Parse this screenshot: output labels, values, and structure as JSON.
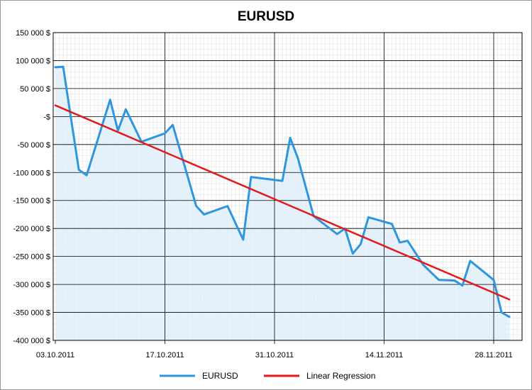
{
  "chart_data": {
    "type": "line",
    "title": "EURUSD",
    "xlabel": "",
    "ylabel": "",
    "x_ticks": [
      "03.10.2011",
      "17.10.2011",
      "31.10.2011",
      "14.11.2011",
      "28.11.2011"
    ],
    "x_range": [
      "2011-10-03",
      "2011-12-01"
    ],
    "y_ticks": [
      "150 000 $",
      "100 000 $",
      "50 000 $",
      "-$",
      "-50 000 $",
      "-100 000 $",
      "-150 000 $",
      "-200 000 $",
      "-250 000 $",
      "-300 000 $",
      "-350 000 $",
      "-400 000 $"
    ],
    "ylim": [
      -400000,
      150000
    ],
    "grid": true,
    "legend_position": "bottom",
    "series": [
      {
        "name": "EURUSD",
        "color": "#2e96de",
        "fill": "#dcedf9",
        "points": [
          [
            "2011-10-03",
            88000
          ],
          [
            "2011-10-04",
            89000
          ],
          [
            "2011-10-06",
            -95000
          ],
          [
            "2011-10-07",
            -105000
          ],
          [
            "2011-10-10",
            30000
          ],
          [
            "2011-10-11",
            -25000
          ],
          [
            "2011-10-12",
            13000
          ],
          [
            "2011-10-14",
            -45000
          ],
          [
            "2011-10-17",
            -30000
          ],
          [
            "2011-10-18",
            -15000
          ],
          [
            "2011-10-21",
            -160000
          ],
          [
            "2011-10-22",
            -175000
          ],
          [
            "2011-10-25",
            -160000
          ],
          [
            "2011-10-27",
            -220000
          ],
          [
            "2011-10-28",
            -108000
          ],
          [
            "2011-11-01",
            -115000
          ],
          [
            "2011-11-02",
            -38000
          ],
          [
            "2011-11-03",
            -75000
          ],
          [
            "2011-11-05",
            -178000
          ],
          [
            "2011-11-08",
            -210000
          ],
          [
            "2011-11-09",
            -200000
          ],
          [
            "2011-11-10",
            -245000
          ],
          [
            "2011-11-11",
            -228000
          ],
          [
            "2011-11-12",
            -180000
          ],
          [
            "2011-11-15",
            -192000
          ],
          [
            "2011-11-16",
            -225000
          ],
          [
            "2011-11-17",
            -222000
          ],
          [
            "2011-11-19",
            -265000
          ],
          [
            "2011-11-21",
            -292000
          ],
          [
            "2011-11-23",
            -293000
          ],
          [
            "2011-11-24",
            -302000
          ],
          [
            "2011-11-25",
            -258000
          ],
          [
            "2011-11-28",
            -292000
          ],
          [
            "2011-11-29",
            -350000
          ],
          [
            "2011-11-30",
            -358000
          ]
        ]
      },
      {
        "name": "Linear Regression",
        "color": "#e21a1a",
        "points": [
          [
            "2011-10-03",
            20000
          ],
          [
            "2011-11-30",
            -327000
          ]
        ]
      }
    ]
  }
}
